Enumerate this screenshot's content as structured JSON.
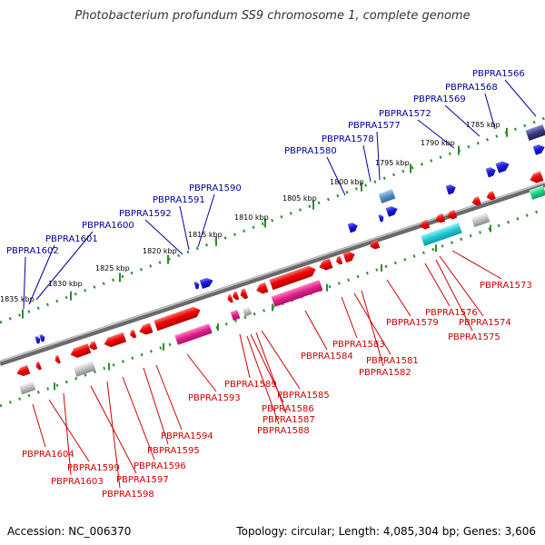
{
  "title": "Photobacterium profundum SS9 chromosome 1, complete genome",
  "footer": {
    "accession": "Accession: NC_006370",
    "topology": "Topology: circular; Length: 4,085,304 bp; Genes: 3,606"
  },
  "colors": {
    "axis": "#777777",
    "track_dots": "#2e8b2e",
    "label_top": "#00009a",
    "label_bottom": "#cc0000",
    "gene_red": "#e00000",
    "gene_blue": "#1c1cdd",
    "gene_pink": "#e0208a",
    "gene_gray": "#b0b0b0",
    "gene_cyan": "#20c8d0",
    "gene_navy": "#3a3a80",
    "gene_steel": "#5a8fc0",
    "gene_green": "#20d080"
  },
  "kbp_ticks": [
    "1835 kbp",
    "1830 kbp",
    "1825 kbp",
    "1820 kbp",
    "1815 kbp",
    "1810 kbp",
    "1805 kbp",
    "1800 kbp",
    "1795 kbp",
    "1790 kbp",
    "1785 kbp"
  ],
  "top_labels": [
    "PBPRA1602",
    "PBPRA1601",
    "PBPRA1600",
    "PBPRA1592",
    "PBPRA1591",
    "PBPRA1590",
    "PBPRA1580",
    "PBPRA1578",
    "PBPRA1577",
    "PBPRA1572",
    "PBPRA1569",
    "PBPRA1568",
    "PBPRA1566"
  ],
  "bottom_labels": [
    "PBPRA1604",
    "PBPRA1599",
    "PBPRA1603",
    "PBPRA1597",
    "PBPRA1598",
    "PBPRA1596",
    "PBPRA1595",
    "PBPRA1594",
    "PBPRA1593",
    "PBPRA1589",
    "PBPRA1586",
    "PBPRA1585",
    "PBPRA1587",
    "PBPRA1588",
    "PBPRA1584",
    "PBPRA1583",
    "PBPRA1581",
    "PBPRA1582",
    "PBPRA1579",
    "PBPRA1576",
    "PBPRA1574",
    "PBPRA1575",
    "PBPRA1573"
  ]
}
